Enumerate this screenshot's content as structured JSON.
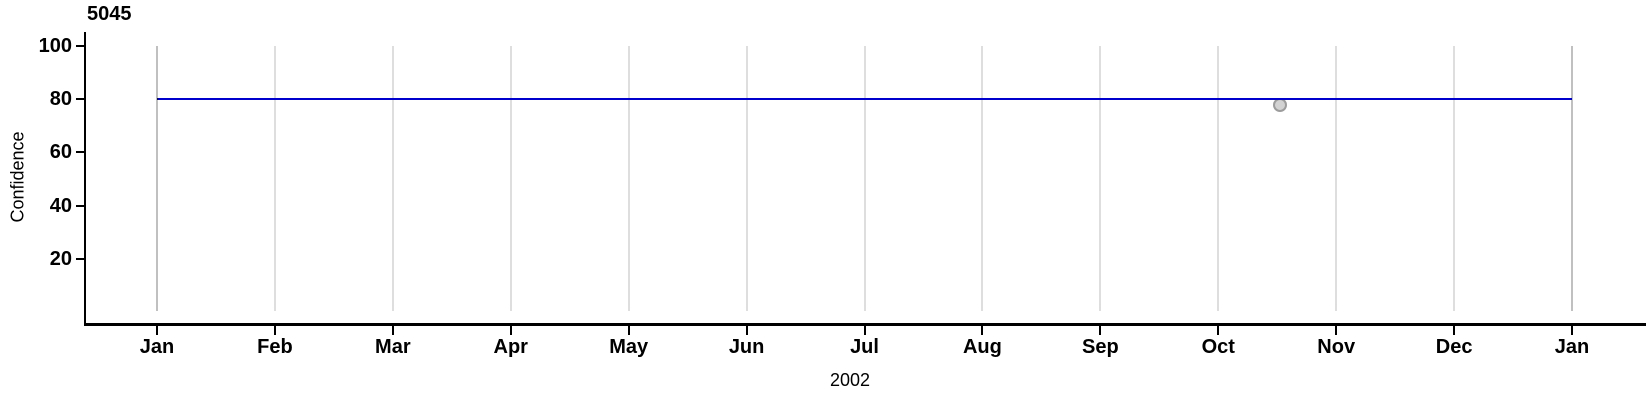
{
  "panel": {
    "title": "5045"
  },
  "axes": {
    "ylabel": "Confidence",
    "xlabel": "2002"
  },
  "chart_data": {
    "type": "line",
    "title": "5045",
    "xlabel": "2002",
    "ylabel": "Confidence",
    "x_tick_labels": [
      "Jan",
      "Feb",
      "Mar",
      "Apr",
      "May",
      "Jun",
      "Jul",
      "Aug",
      "Sep",
      "Oct",
      "Nov",
      "Dec",
      "Jan"
    ],
    "y_tick_values": [
      20,
      40,
      60,
      80,
      100
    ],
    "ylim": [
      0,
      105
    ],
    "xlim_months": [
      0,
      12
    ],
    "grid": "vertical-monthly",
    "legend": "none",
    "series": [
      {
        "name": "reference-line",
        "type": "line",
        "color": "#0000cc",
        "y": 80,
        "x_start_month": 0,
        "x_end_month": 12,
        "description": "horizontal line at Confidence = 80 spanning Jan 2002 to Jan 2003"
      },
      {
        "name": "observation",
        "type": "scatter",
        "fill": "#d2d2d2",
        "stroke": "#9c9c9c",
        "points": [
          {
            "date": "2002-10-16",
            "x_month_index": 9.52,
            "y": 78
          }
        ]
      }
    ],
    "colors": {
      "gridline": "#dedede",
      "gridline_year": "#c0c0c0",
      "axis": "#000000",
      "background": "#ffffff"
    }
  }
}
